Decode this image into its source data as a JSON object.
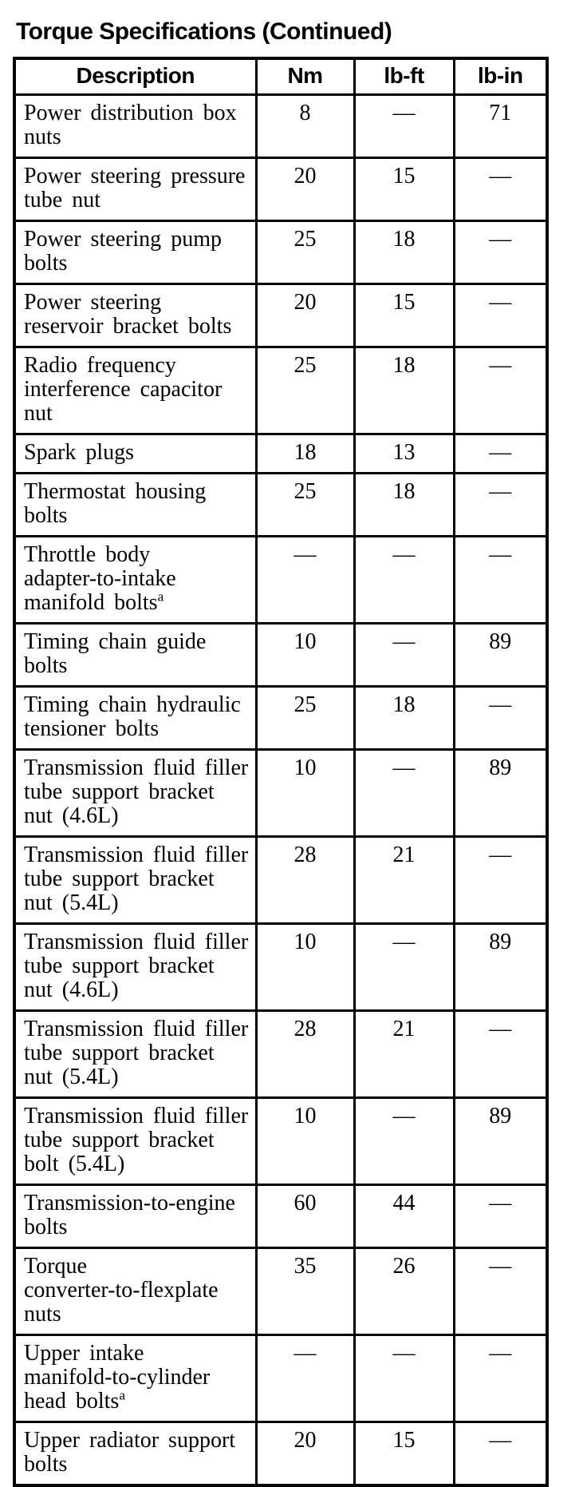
{
  "page_title": "Torque Specifications (Continued)",
  "table": {
    "columns": [
      "Description",
      "Nm",
      "lb-ft",
      "lb-in"
    ],
    "rows": [
      {
        "description": "Power distribution box nuts",
        "sup": "",
        "nm": "8",
        "lb_ft": "—",
        "lb_in": "71"
      },
      {
        "description": "Power steering pressure tube nut",
        "sup": "",
        "nm": "20",
        "lb_ft": "15",
        "lb_in": "—"
      },
      {
        "description": "Power steering pump bolts",
        "sup": "",
        "nm": "25",
        "lb_ft": "18",
        "lb_in": "—"
      },
      {
        "description": "Power steering reservoir bracket bolts",
        "sup": "",
        "nm": "20",
        "lb_ft": "15",
        "lb_in": "—"
      },
      {
        "description": "Radio frequency interference capacitor nut",
        "sup": "",
        "nm": "25",
        "lb_ft": "18",
        "lb_in": "—"
      },
      {
        "description": "Spark plugs",
        "sup": "",
        "nm": "18",
        "lb_ft": "13",
        "lb_in": "—"
      },
      {
        "description": "Thermostat housing bolts",
        "sup": "",
        "nm": "25",
        "lb_ft": "18",
        "lb_in": "—"
      },
      {
        "description": "Throttle body adapter-to-intake manifold bolts",
        "sup": "a",
        "nm": "—",
        "lb_ft": "—",
        "lb_in": "—"
      },
      {
        "description": "Timing chain guide bolts",
        "sup": "",
        "nm": "10",
        "lb_ft": "—",
        "lb_in": "89"
      },
      {
        "description": "Timing chain hydraulic tensioner bolts",
        "sup": "",
        "nm": "25",
        "lb_ft": "18",
        "lb_in": "—"
      },
      {
        "description": "Transmission fluid filler tube support bracket nut (4.6L)",
        "sup": "",
        "nm": "10",
        "lb_ft": "—",
        "lb_in": "89"
      },
      {
        "description": "Transmission fluid filler tube support bracket nut (5.4L)",
        "sup": "",
        "nm": "28",
        "lb_ft": "21",
        "lb_in": "—"
      },
      {
        "description": "Transmission fluid filler tube support bracket nut (4.6L)",
        "sup": "",
        "nm": "10",
        "lb_ft": "—",
        "lb_in": "89"
      },
      {
        "description": "Transmission fluid filler tube support bracket nut (5.4L)",
        "sup": "",
        "nm": "28",
        "lb_ft": "21",
        "lb_in": "—"
      },
      {
        "description": "Transmission fluid filler tube support bracket bolt (5.4L)",
        "sup": "",
        "nm": "10",
        "lb_ft": "—",
        "lb_in": "89"
      },
      {
        "description": "Transmission-to-engine bolts",
        "sup": "",
        "nm": "60",
        "lb_ft": "44",
        "lb_in": "—"
      },
      {
        "description": "Torque converter-to-flexplate nuts",
        "sup": "",
        "nm": "35",
        "lb_ft": "26",
        "lb_in": "—"
      },
      {
        "description": "Upper intake manifold-to-cylinder head bolts",
        "sup": "a",
        "nm": "—",
        "lb_ft": "—",
        "lb_in": "—"
      },
      {
        "description": "Upper radiator support bolts",
        "sup": "",
        "nm": "20",
        "lb_ft": "15",
        "lb_in": "—"
      }
    ]
  }
}
